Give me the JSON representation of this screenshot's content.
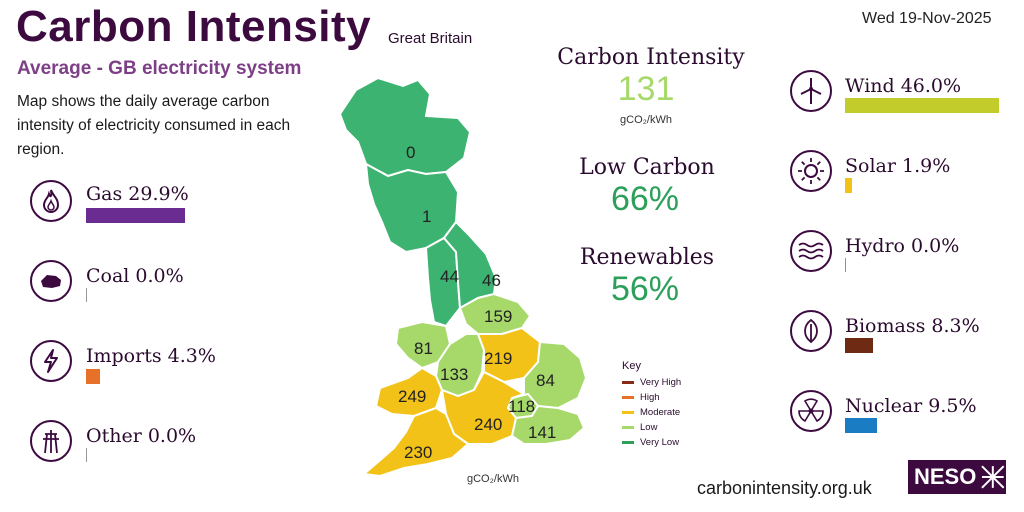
{
  "header": {
    "title": "Carbon Intensity",
    "region": "Great Britain",
    "subtitle": "Average - GB electricity system",
    "description": "Map shows the daily average carbon intensity of electricity consumed in each region.",
    "date": "Wed 19-Nov-2025"
  },
  "left_fuels": [
    {
      "label": "Gas 29.9%",
      "percent": 29.9,
      "color": "#6a2c91",
      "icon": "flame-icon"
    },
    {
      "label": "Coal 0.0%",
      "percent": 0.0,
      "color": "#888888",
      "icon": "coal-icon"
    },
    {
      "label": "Imports 4.3%",
      "percent": 4.3,
      "color": "#e8712a",
      "icon": "lightning-icon"
    },
    {
      "label": "Other 0.0%",
      "percent": 0.0,
      "color": "#888888",
      "icon": "pylon-icon"
    }
  ],
  "right_fuels": [
    {
      "label": "Wind 46.0%",
      "percent": 46.0,
      "color": "#c2cc2a",
      "icon": "wind-turbine-icon"
    },
    {
      "label": "Solar 1.9%",
      "percent": 1.9,
      "color": "#f2c218",
      "icon": "sun-icon"
    },
    {
      "label": "Hydro 0.0%",
      "percent": 0.0,
      "color": "#5aa0d8",
      "icon": "waves-icon"
    },
    {
      "label": "Biomass 8.3%",
      "percent": 8.3,
      "color": "#6e2a12",
      "icon": "leaf-icon"
    },
    {
      "label": "Nuclear 9.5%",
      "percent": 9.5,
      "color": "#1a7dc4",
      "icon": "radiation-icon"
    }
  ],
  "stats": {
    "intensity_label": "Carbon Intensity",
    "intensity_value": "131",
    "intensity_unit": "gCO₂/kWh",
    "low_carbon_label": "Low Carbon",
    "low_carbon_value": "66%",
    "renewables_label": "Renewables",
    "renewables_value": "56%"
  },
  "map": {
    "unit": "gCO₂/kWh",
    "regions": [
      "0",
      "1",
      "44",
      "46",
      "159",
      "81",
      "133",
      "219",
      "84",
      "249",
      "118",
      "240",
      "141",
      "230"
    ]
  },
  "legend": {
    "title": "Key",
    "items": [
      {
        "label": "Very High",
        "color": "#8b2a14"
      },
      {
        "label": "High",
        "color": "#e8712a"
      },
      {
        "label": "Moderate",
        "color": "#f2c218"
      },
      {
        "label": "Low",
        "color": "#a6d96a"
      },
      {
        "label": "Very Low",
        "color": "#2ca05a"
      }
    ]
  },
  "colors": {
    "very_low": "#3cb371",
    "low": "#a6d96a",
    "moderate": "#f2c218",
    "intensity_value": "#a6d96a",
    "percent_value": "#2ca05a",
    "brand": "#3d0a40"
  },
  "footer": {
    "url": "carbonintensity.org.uk",
    "logo": "NESO"
  }
}
